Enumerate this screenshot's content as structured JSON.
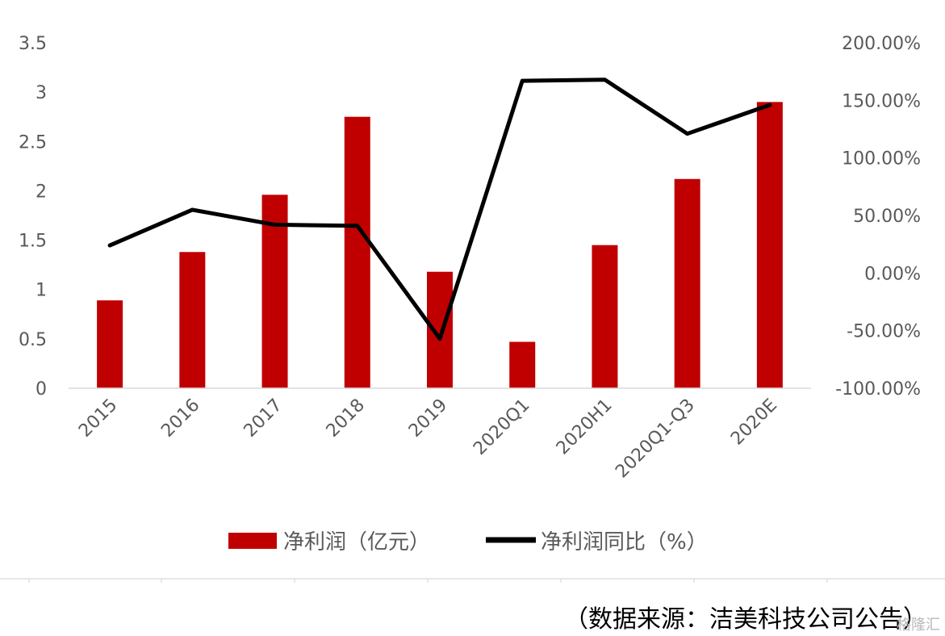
{
  "chart_data": {
    "type": "bar",
    "categories": [
      "2015",
      "2016",
      "2017",
      "2018",
      "2019",
      "2020Q1",
      "2020H1",
      "2020Q1-Q3",
      "2020E"
    ],
    "series": [
      {
        "name": "净利润（亿元）",
        "type": "bar",
        "axis": "left",
        "values": [
          0.89,
          1.38,
          1.96,
          2.75,
          1.18,
          0.47,
          1.45,
          2.12,
          2.9
        ]
      },
      {
        "name": "净利润同比（%）",
        "type": "line",
        "axis": "right",
        "values": [
          24.0,
          55.0,
          42.0,
          41.0,
          -57.0,
          167.0,
          168.0,
          121.0,
          146.0
        ]
      }
    ],
    "ylim": [
      0,
      3.5
    ],
    "yticks": [
      "0",
      "0.5",
      "1",
      "1.5",
      "2",
      "2.5",
      "3",
      "3.5"
    ],
    "y2lim": [
      -100,
      200
    ],
    "y2ticks": [
      "-100.00%",
      "-50.00%",
      "0.00%",
      "50.00%",
      "100.00%",
      "150.00%",
      "200.00%"
    ],
    "legend_position": "bottom",
    "colors": {
      "bar": "#c00000",
      "line": "#000000",
      "axis": "#d9d9d9",
      "text": "#595959"
    }
  },
  "footer": {
    "source": "（数据来源：洁美科技公司公告）",
    "watermark": "格隆汇"
  }
}
